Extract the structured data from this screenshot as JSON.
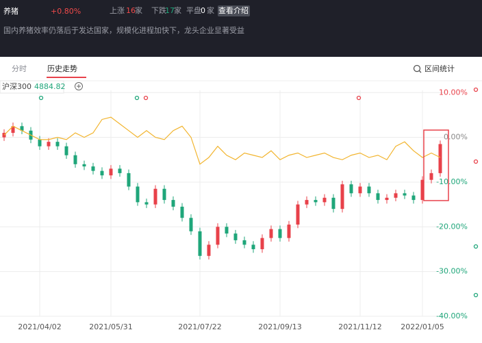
{
  "header": {
    "title": "养猪",
    "change": "+0.80%",
    "up_label": "上涨",
    "up_count": 16,
    "down_label": "下跌",
    "down_count": 17,
    "flat_label": "平盘",
    "flat_count": 0,
    "unit": "家",
    "button": "查看介绍",
    "description": "国内养猪效率仍落后于发达国家，规模化进程加快下，龙头企业显著受益"
  },
  "tabs": {
    "items": [
      "分时",
      "历史走势"
    ],
    "active": 1,
    "range_stats": "区间统计"
  },
  "chart_data": {
    "type": "candlestick",
    "categories": [
      null,
      null,
      null,
      null,
      "2021/04/02",
      null,
      null,
      null,
      null,
      null,
      null,
      null,
      "2021/05/31",
      null,
      null,
      null,
      null,
      null,
      null,
      null,
      null,
      null,
      "2021/07/22",
      null,
      null,
      null,
      null,
      null,
      null,
      null,
      null,
      "2021/09/13",
      null,
      null,
      null,
      null,
      null,
      null,
      null,
      null,
      "2021/11/12",
      null,
      null,
      null,
      null,
      null,
      null,
      "2022/01/05",
      null,
      null
    ],
    "open": [
      0,
      1,
      2.5,
      1.5,
      -0.5,
      -2,
      -1,
      -2,
      -4,
      -6,
      -6.5,
      -7.5,
      -8.5,
      -7,
      -8,
      -11,
      -14.5,
      -15,
      -11.5,
      -14,
      -15.5,
      -18,
      -21,
      -26.5,
      -24,
      -20,
      -21.5,
      -23,
      -24,
      -25,
      -22.5,
      -20.5,
      -22.5,
      -19.5,
      -15,
      -14,
      -14.5,
      -13.5,
      -16,
      -10.5,
      -12.5,
      -11,
      -12.5,
      -14,
      -13.5,
      -12.5,
      -13,
      -14,
      -9.5,
      -8
    ],
    "high": [
      1.8,
      3.3,
      3.3,
      2.3,
      0.3,
      -0.2,
      -0.2,
      -1.2,
      -3.2,
      -5.2,
      -5.7,
      -6.7,
      -6.2,
      -6.2,
      -7.2,
      -10.2,
      -13.7,
      -10.7,
      -10.7,
      -13.2,
      -14.7,
      -17.2,
      -20.2,
      -23.2,
      -19.2,
      -19.2,
      -20.7,
      -22.2,
      -23.2,
      -21.7,
      -19.7,
      -19.7,
      -18.7,
      -14.2,
      -13.2,
      -13.2,
      -12.7,
      -12.7,
      -9.7,
      -9.7,
      -10.2,
      -10.2,
      -11.7,
      -12.7,
      -11.7,
      -11.7,
      -12.2,
      -8.7,
      -7.2,
      -0.7
    ],
    "low": [
      -0.8,
      0.2,
      0.7,
      -1.3,
      -2.8,
      -2.8,
      -2.8,
      -4.8,
      -6.8,
      -7.3,
      -8.3,
      -9.3,
      -9.3,
      -8.8,
      -11.8,
      -15.3,
      -15.8,
      -15.8,
      -14.8,
      -16.3,
      -18.8,
      -21.8,
      -27.3,
      -27.3,
      -24.8,
      -22.3,
      -23.8,
      -24.8,
      -25.8,
      -25.8,
      -23.3,
      -23.3,
      -23.3,
      -20.3,
      -15.8,
      -15.3,
      -15.3,
      -16.8,
      -16.8,
      -13.3,
      -13.3,
      -13.3,
      -14.8,
      -14.8,
      -14.3,
      -13.8,
      -14.8,
      -14.8,
      -10.3,
      -8.8
    ],
    "close": [
      1,
      2.5,
      1.5,
      -0.5,
      -2,
      -1,
      -2,
      -4,
      -6,
      -6.5,
      -7.5,
      -8.5,
      -7,
      -8,
      -11,
      -14.5,
      -15,
      -11.5,
      -14,
      -15.5,
      -18,
      -21,
      -26.5,
      -24,
      -20,
      -21.5,
      -23,
      -24,
      -25,
      -22.5,
      -20.5,
      -22.5,
      -19.5,
      -15,
      -14,
      -14.5,
      -13.5,
      -16,
      -10.5,
      -12.5,
      -11,
      -12.5,
      -14,
      -13.5,
      -12.5,
      -13,
      -14,
      -9.5,
      -8,
      -1.5
    ],
    "up_color": "#e8414a",
    "down_color": "#1fa67a",
    "series": [
      {
        "name": "沪深300",
        "color": "#f2b42d",
        "latest": 4884.82,
        "values": [
          0.5,
          2.5,
          1.5,
          0.5,
          -0.5,
          -0.5,
          0,
          -0.5,
          1,
          0,
          1,
          4,
          4.5,
          3,
          1.5,
          0,
          1.5,
          0,
          -0.5,
          1.5,
          2.5,
          0,
          -6,
          -4.5,
          -2,
          -4,
          -5,
          -3.5,
          -4,
          -4.5,
          -3,
          -5,
          -4,
          -3.5,
          -4.5,
          -4,
          -3.5,
          -4.5,
          -5,
          -4,
          -3.5,
          -4.5,
          -4,
          -5,
          -2,
          -1,
          -3,
          -4.5,
          -3.5,
          -4.5
        ]
      }
    ],
    "ylim": [
      -40,
      10.5
    ],
    "yticks": [
      {
        "value": 10,
        "label": "10.00%"
      },
      {
        "value": 0,
        "label": "0.00%"
      },
      {
        "value": -10,
        "label": "-10.00%"
      },
      {
        "value": -20,
        "label": "-20.00%"
      },
      {
        "value": -30,
        "label": "-30.00%"
      },
      {
        "value": -40,
        "label": "-40.00%"
      }
    ],
    "grid": true
  }
}
